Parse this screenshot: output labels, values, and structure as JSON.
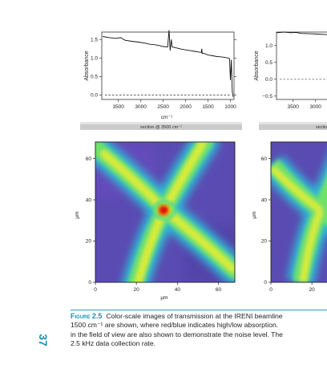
{
  "figure": {
    "page_number": "37",
    "caption": {
      "label": "Figure",
      "number": "2.5",
      "lines": [
        "Color-scale images of transmission at the IRENI beamline",
        "1500 cm⁻¹ are shown, where red/blue indicates high/low absorption.",
        "in the field of view are also shown to demonstrate the noise level. The",
        "2.5 kHz data collection rate."
      ]
    },
    "left_panel": {
      "section_bar_label": "section @ 3500 cm⁻¹",
      "image_x_label": "μm",
      "image_y_label": "μm"
    },
    "right_panel": {
      "section_bar_label": "sectio",
      "image_y_label": "μm"
    }
  },
  "chart_data": [
    {
      "type": "line",
      "panel": "left-spectrum",
      "xlabel": "cm⁻¹",
      "ylabel": "Absorbance",
      "x_reversed": true,
      "xlim": [
        3870,
        920
      ],
      "ylim": [
        -0.12,
        1.7
      ],
      "xticks": [
        3500,
        3000,
        2500,
        2000,
        1500,
        1000
      ],
      "yticks": [
        0.0,
        0.5,
        1.0,
        1.5
      ],
      "ytick_labels": [
        "0.0",
        "0.5",
        "1.0",
        "1.5"
      ],
      "baseline_y": 0.0,
      "x": [
        3850,
        3700,
        3550,
        3450,
        3350,
        3200,
        3050,
        2900,
        2800,
        2700,
        2600,
        2500,
        2400,
        2370,
        2345,
        2320,
        2300,
        2200,
        2100,
        2000,
        1900,
        1800,
        1700,
        1650,
        1640,
        1630,
        1600,
        1500,
        1400,
        1300,
        1200,
        1100,
        1050,
        1020,
        1000,
        980,
        960,
        940
      ],
      "y": [
        1.58,
        1.55,
        1.53,
        1.55,
        1.48,
        1.45,
        1.43,
        1.4,
        1.37,
        1.36,
        1.34,
        1.31,
        1.3,
        1.75,
        1.2,
        1.5,
        1.3,
        1.27,
        1.24,
        1.22,
        1.2,
        1.18,
        1.16,
        1.15,
        1.25,
        1.12,
        1.13,
        1.08,
        1.06,
        1.04,
        1.03,
        1.01,
        1.0,
        0.98,
        0.4,
        0.95,
        0.1,
        -0.05
      ]
    },
    {
      "type": "line",
      "panel": "right-spectrum",
      "ylabel": "Absorbance",
      "ylim": [
        -0.6,
        1.4
      ],
      "yticks": [
        -0.5,
        0.0,
        0.5,
        1.0
      ],
      "ytick_labels": [
        "−0.5",
        "0.0",
        "0.5",
        "1.0"
      ],
      "xticks": [
        3500,
        3000
      ],
      "xlim": [
        3870,
        2600
      ],
      "x": [
        3870,
        3700,
        3550,
        3450,
        3300,
        3100,
        2950,
        2800,
        2700
      ],
      "y": [
        1.38,
        1.4,
        1.38,
        1.39,
        1.36,
        1.35,
        1.34,
        1.33,
        1.32
      ],
      "baseline_y": 0.0
    },
    {
      "type": "heatmap",
      "panel": "left-image",
      "xticks": [
        0,
        20,
        40,
        60
      ],
      "yticks": [
        0,
        20,
        40,
        60
      ],
      "xlim": [
        0,
        68
      ],
      "ylim": [
        0,
        68
      ]
    },
    {
      "type": "heatmap",
      "panel": "right-image",
      "xticks": [
        0,
        20
      ],
      "yticks": [
        0,
        20,
        40,
        60
      ],
      "xlim": [
        0,
        68
      ],
      "ylim": [
        0,
        68
      ]
    }
  ],
  "colors": {
    "accent": "#1a8fb3",
    "section_bar": "#c8c8c8",
    "heat_low": "#5b4ab0",
    "heat_mid": "#2fd66a",
    "heat_high": "#e01e14"
  }
}
